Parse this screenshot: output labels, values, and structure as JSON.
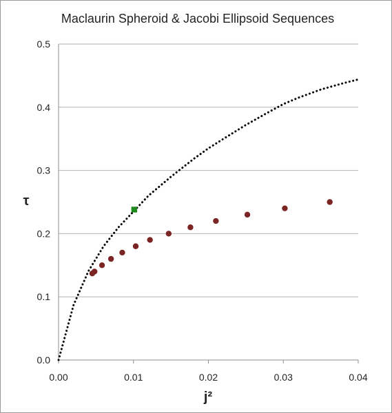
{
  "chart_data": {
    "type": "scatter",
    "title": "Maclaurin Spheroid & Jacobi Ellipsoid Sequences",
    "xlabel": "j²",
    "ylabel": "τ",
    "xlim": [
      0.0,
      0.04
    ],
    "ylim": [
      0.0,
      0.5
    ],
    "x_ticks": [
      "0.00",
      "0.01",
      "0.02",
      "0.03",
      "0.04"
    ],
    "y_ticks": [
      "0.0",
      "0.1",
      "0.2",
      "0.3",
      "0.4",
      "0.5"
    ],
    "grid": "horizontal",
    "series": [
      {
        "style": "dotted-line",
        "color": "#000000",
        "x": [
          0.0,
          0.002,
          0.004,
          0.006,
          0.008,
          0.01,
          0.012,
          0.015,
          0.018,
          0.02,
          0.022,
          0.025,
          0.028,
          0.03,
          0.032,
          0.035,
          0.038,
          0.04
        ],
        "y": [
          0.0,
          0.087,
          0.141,
          0.18,
          0.21,
          0.235,
          0.26,
          0.29,
          0.318,
          0.335,
          0.35,
          0.372,
          0.392,
          0.405,
          0.415,
          0.428,
          0.438,
          0.444
        ]
      },
      {
        "style": "circle-markers",
        "color": "#7a2424",
        "x": [
          0.0045,
          0.0048,
          0.0058,
          0.007,
          0.0085,
          0.0103,
          0.0122,
          0.0147,
          0.0176,
          0.021,
          0.0252,
          0.0302,
          0.0362
        ],
        "y": [
          0.137,
          0.14,
          0.15,
          0.16,
          0.17,
          0.18,
          0.19,
          0.2,
          0.21,
          0.22,
          0.23,
          0.24,
          0.25
        ]
      },
      {
        "style": "square-marker",
        "color": "#1e8a1e",
        "x": [
          0.0101
        ],
        "y": [
          0.238
        ]
      }
    ]
  }
}
